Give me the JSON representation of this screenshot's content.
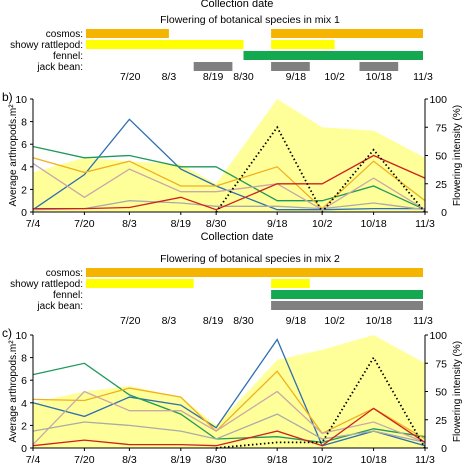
{
  "chart_data": [
    {
      "id": "mix1_flowering",
      "type": "gantt",
      "top_label": "Collection date",
      "title": "Flowering of botanical species in mix 1",
      "species": [
        {
          "name": "cosmos:",
          "color": "#f5b400",
          "periods": [
            [
              "7/4",
              "8/3"
            ],
            [
              "9/9",
              "11/3"
            ]
          ]
        },
        {
          "name": "showy rattlepod:",
          "color": "#ffff00",
          "periods": [
            [
              "7/4",
              "8/30"
            ],
            [
              "9/9",
              "10/2"
            ]
          ]
        },
        {
          "name": "fennel:",
          "color": "#14a850",
          "periods": [
            [
              "8/30",
              "11/3"
            ]
          ]
        },
        {
          "name": "jack bean:",
          "color": "#808080",
          "periods": [
            [
              "8/12",
              "8/26"
            ],
            [
              "9/9",
              "9/23"
            ],
            [
              "10/11",
              "10/25"
            ]
          ]
        }
      ],
      "dates": [
        "7/20",
        "8/3",
        "8/19",
        "8/30",
        "9/18",
        "10/2",
        "10/18",
        "11/3"
      ]
    },
    {
      "id": "mix1_arthropods",
      "type": "line",
      "panel": "b)",
      "ylabel": "Average arthropods.m²",
      "ylabel_right": "Flowering intensity (%)",
      "xlabel": "Collection date",
      "x": [
        "7/4",
        "7/20",
        "8/3",
        "8/19",
        "8/30",
        "9/18",
        "10/2",
        "10/18",
        "11/3"
      ],
      "ylim": [
        0,
        10
      ],
      "yticks": [
        0,
        2,
        4,
        6,
        8,
        10
      ],
      "ylim_right": [
        0,
        100
      ],
      "yticks_right": [
        0,
        25,
        50,
        75,
        100
      ],
      "area_values_pct": [
        35,
        48,
        45,
        42,
        25,
        100,
        75,
        72,
        48
      ],
      "area_color": "#ffff99",
      "series": [
        {
          "color": "#2e6fb4",
          "values": [
            0.2,
            3.3,
            8.2,
            3.8,
            2.3,
            0.2,
            0.2,
            0.3,
            0.3
          ]
        },
        {
          "color": "#1f9a5a",
          "values": [
            5.8,
            4.8,
            5.0,
            4.0,
            4.0,
            1.0,
            1.0,
            2.3,
            0.2
          ]
        },
        {
          "color": "#f0b020",
          "values": [
            4.8,
            3.5,
            4.5,
            2.3,
            2.3,
            4.0,
            0.3,
            4.5,
            1.0
          ]
        },
        {
          "color": "#c8a8a8",
          "values": [
            4.3,
            1.3,
            3.8,
            1.8,
            1.8,
            2.5,
            0.2,
            3.0,
            0.2
          ]
        },
        {
          "color": "#aaaaaa",
          "values": [
            0.2,
            0.3,
            1.0,
            0.8,
            0.5,
            0.5,
            0.3,
            0.8,
            0.2
          ]
        },
        {
          "color": "#d02020",
          "values": [
            0.3,
            0.3,
            0.4,
            1.3,
            0.2,
            2.5,
            2.5,
            5.0,
            3.0
          ]
        },
        {
          "color": "#000000",
          "dotted": true,
          "axis": "right",
          "values_pct": [
            null,
            null,
            null,
            null,
            0,
            75,
            0,
            55,
            0
          ]
        }
      ]
    },
    {
      "id": "mix2_flowering",
      "type": "gantt",
      "title": "Flowering of botanical species in mix 2",
      "species": [
        {
          "name": "cosmos:",
          "color": "#f5b400",
          "periods": [
            [
              "7/4",
              "11/3"
            ]
          ]
        },
        {
          "name": "showy rattlepod:",
          "color": "#ffff00",
          "periods": [
            [
              "7/4",
              "8/12"
            ],
            [
              "9/9",
              "9/23"
            ]
          ]
        },
        {
          "name": "fennel:",
          "color": "#14a850",
          "periods": [
            [
              "9/9",
              "11/3"
            ]
          ]
        },
        {
          "name": "jack bean:",
          "color": "#808080",
          "periods": [
            [
              "9/9",
              "11/3"
            ]
          ]
        }
      ],
      "dates": [
        "7/20",
        "8/3",
        "8/19",
        "8/30",
        "9/18",
        "10/2",
        "10/18",
        "11/3"
      ]
    },
    {
      "id": "mix2_arthropods",
      "type": "line",
      "panel": "c)",
      "ylabel": "Average arthropods.m²",
      "ylabel_right": "Flowering intensity (%)",
      "x": [
        "7/4",
        "7/20",
        "8/3",
        "8/19",
        "8/30",
        "9/18",
        "10/2",
        "10/18",
        "11/3"
      ],
      "ylim": [
        0,
        10
      ],
      "yticks": [
        0,
        2,
        4,
        6,
        8,
        10
      ],
      "ylim_right": [
        0,
        100
      ],
      "yticks_right": [
        0,
        25,
        50,
        75,
        100
      ],
      "area_values_pct": [
        40,
        50,
        55,
        45,
        20,
        78,
        87,
        100,
        75
      ],
      "area_color": "#ffff99",
      "series": [
        {
          "color": "#2e6fb4",
          "values": [
            4.0,
            2.8,
            4.5,
            3.8,
            1.8,
            9.6,
            0.2,
            1.5,
            0.2
          ]
        },
        {
          "color": "#1f9a5a",
          "values": [
            6.5,
            7.5,
            4.7,
            3.0,
            0.8,
            1.0,
            0.5,
            1.7,
            1.0
          ]
        },
        {
          "color": "#f0b020",
          "values": [
            4.3,
            4.2,
            5.3,
            4.5,
            1.5,
            6.8,
            1.3,
            3.5,
            0.8
          ]
        },
        {
          "color": "#c8a8a8",
          "values": [
            0.3,
            5.0,
            3.3,
            3.3,
            1.5,
            5.0,
            1.3,
            2.3,
            0.5
          ]
        },
        {
          "color": "#aaaaaa",
          "values": [
            1.5,
            2.3,
            2.0,
            1.5,
            0.8,
            3.0,
            0.8,
            1.5,
            0.5
          ]
        },
        {
          "color": "#d02020",
          "values": [
            0.2,
            0.7,
            0.3,
            0.3,
            0.2,
            1.5,
            0.2,
            3.5,
            0.5
          ]
        },
        {
          "color": "#000000",
          "dotted": true,
          "axis": "right",
          "values_pct": [
            null,
            null,
            null,
            null,
            0,
            5,
            5,
            80,
            0
          ]
        }
      ]
    }
  ]
}
